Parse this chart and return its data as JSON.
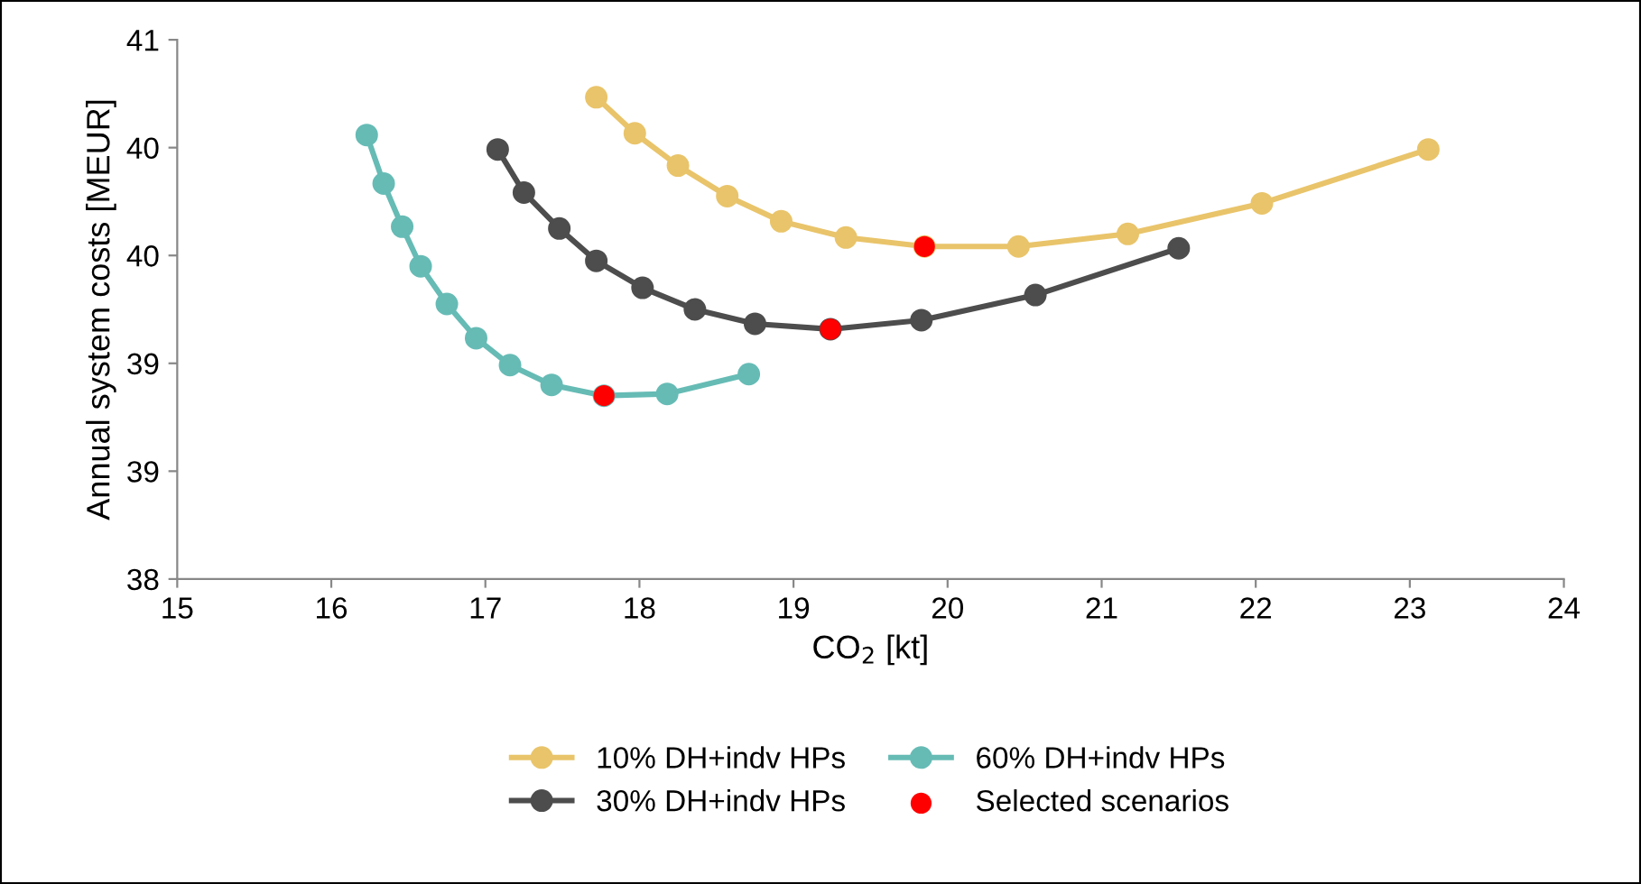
{
  "chart_data": {
    "type": "line",
    "xlabel": "CO$_{2}$ [kt]",
    "ylabel": "Annual system costs [MEUR]",
    "xlim": [
      15,
      24
    ],
    "xticks": [
      15,
      16,
      17,
      18,
      19,
      20,
      21,
      22,
      23,
      24
    ],
    "ylim": [
      38,
      41
    ],
    "yticks": [
      38,
      {
        "value": 38.6,
        "label": "39"
      },
      {
        "value": 39.2,
        "label": "39"
      },
      {
        "value": 39.8,
        "label": "40"
      },
      {
        "value": 40.4,
        "label": "40"
      },
      41
    ],
    "grid": false,
    "legend": "bottom",
    "marker": "circle",
    "series": [
      {
        "name": "10% DH+indv HPs",
        "color": "#e9c46a",
        "x": [
          17.72,
          17.97,
          18.25,
          18.57,
          18.92,
          19.34,
          19.85,
          20.46,
          21.17,
          22.04,
          23.12
        ],
        "values": [
          40.68,
          40.48,
          40.3,
          40.13,
          39.99,
          39.9,
          39.85,
          39.85,
          39.92,
          40.09,
          40.39
        ]
      },
      {
        "name": "30% DH+indv HPs",
        "color": "#4d4d4d",
        "x": [
          17.08,
          17.25,
          17.48,
          17.72,
          18.02,
          18.36,
          18.75,
          19.24,
          19.83,
          20.57,
          21.5
        ],
        "values": [
          40.39,
          40.15,
          39.95,
          39.77,
          39.62,
          39.5,
          39.42,
          39.39,
          39.44,
          39.58,
          39.84
        ]
      },
      {
        "name": "60% DH+indv HPs",
        "color": "#66bbb5",
        "x": [
          16.23,
          16.34,
          16.46,
          16.58,
          16.75,
          16.94,
          17.16,
          17.43,
          17.77,
          18.18,
          18.71
        ],
        "values": [
          40.47,
          40.2,
          39.96,
          39.74,
          39.53,
          39.34,
          39.19,
          39.08,
          39.02,
          39.03,
          39.14
        ]
      },
      {
        "name": "Selected scenarios",
        "type": "scatter",
        "color": "#ff0000",
        "x": [
          19.85,
          19.24,
          17.77
        ],
        "values": [
          39.85,
          39.39,
          39.02
        ]
      }
    ]
  }
}
